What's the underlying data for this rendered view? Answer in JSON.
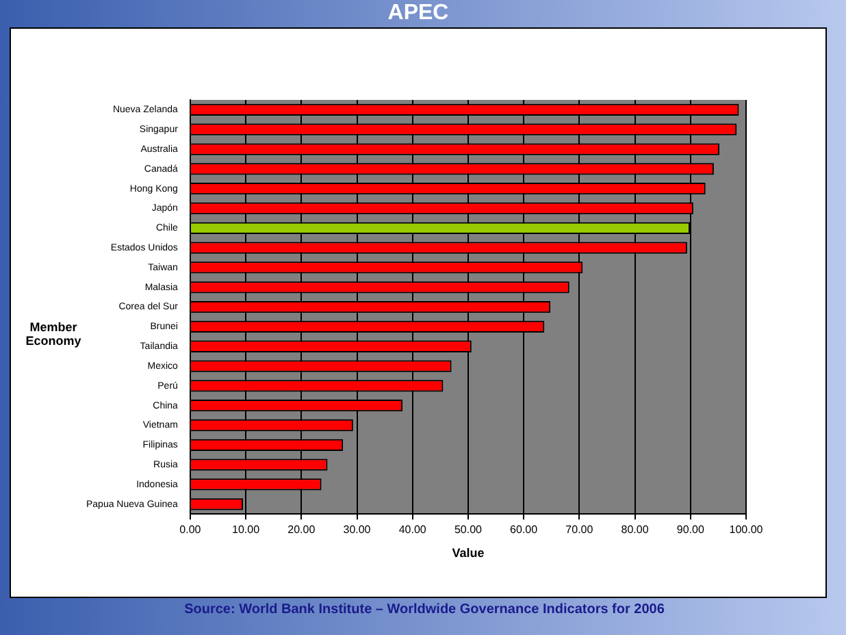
{
  "chart_data": {
    "type": "bar",
    "orientation": "horizontal",
    "title": "APEC",
    "xlabel": "Value",
    "ylabel": "Member Economy",
    "categories": [
      "Nueva Zelanda",
      "Singapur",
      "Australia",
      "Canadá",
      "Hong Kong",
      "Japón",
      "Chile",
      "Estados Unidos",
      "Taiwan",
      "Malasia",
      "Corea del Sur",
      "Brunei",
      "Tailandia",
      "Mexico",
      "Perú",
      "China",
      "Vietnam",
      "Filipinas",
      "Rusia",
      "Indonesia",
      "Papua Nueva Guinea"
    ],
    "values": [
      98.7,
      98.3,
      95.2,
      94.2,
      92.7,
      90.5,
      89.9,
      89.4,
      70.6,
      68.2,
      64.8,
      63.7,
      50.6,
      47.0,
      45.5,
      38.2,
      29.3,
      27.5,
      24.7,
      23.6,
      9.5
    ],
    "colors": [
      "#ff0000",
      "#ff0000",
      "#ff0000",
      "#ff0000",
      "#ff0000",
      "#ff0000",
      "#99cc00",
      "#ff0000",
      "#ff0000",
      "#ff0000",
      "#ff0000",
      "#ff0000",
      "#ff0000",
      "#ff0000",
      "#ff0000",
      "#ff0000",
      "#ff0000",
      "#ff0000",
      "#ff0000",
      "#ff0000",
      "#ff0000"
    ],
    "xlim": [
      0,
      100
    ],
    "xticks": [
      {
        "value": 0,
        "label": "0.00"
      },
      {
        "value": 10,
        "label": "10.00"
      },
      {
        "value": 20,
        "label": "20.00"
      },
      {
        "value": 30,
        "label": "30.00"
      },
      {
        "value": 40,
        "label": "40.00"
      },
      {
        "value": 50,
        "label": "50.00"
      },
      {
        "value": 60,
        "label": "60.00"
      },
      {
        "value": 70,
        "label": "70.00"
      },
      {
        "value": 80,
        "label": "80.00"
      },
      {
        "value": 90,
        "label": "90.00"
      },
      {
        "value": 100,
        "label": "100.00"
      }
    ],
    "grid": "x",
    "annotations": [
      "Source: World Bank Institute – Worldwide Governance Indicators for 2006"
    ]
  }
}
